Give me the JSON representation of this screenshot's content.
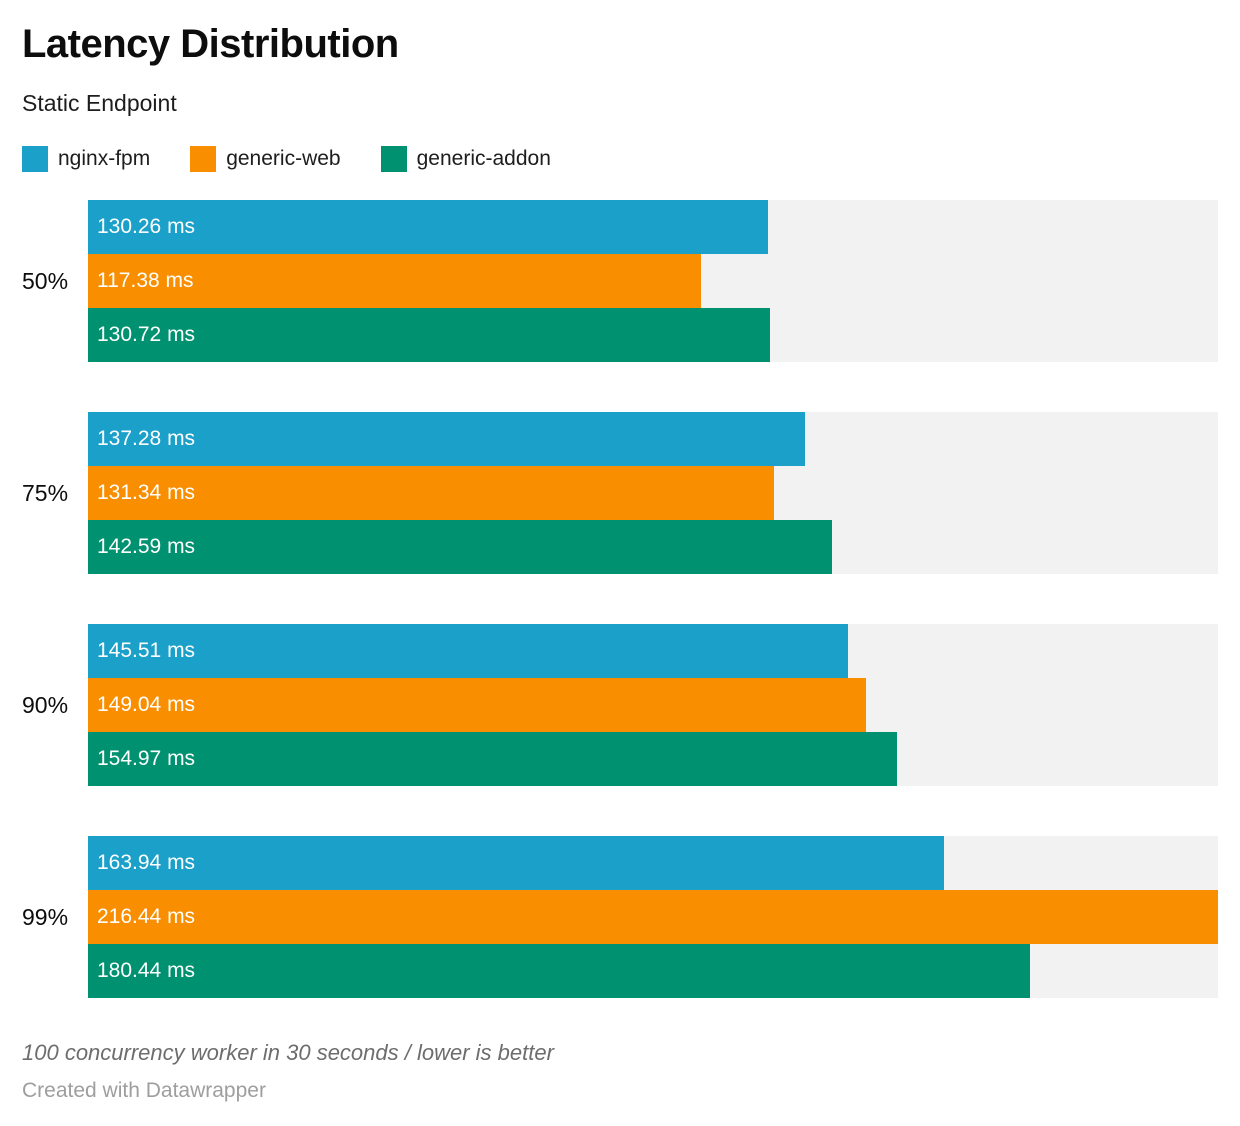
{
  "header": {
    "title": "Latency Distribution",
    "subtitle": "Static Endpoint"
  },
  "chart_data": {
    "type": "bar",
    "orientation": "horizontal",
    "grouped": true,
    "title": "Latency Distribution",
    "subtitle": "Static Endpoint",
    "categories": [
      "50%",
      "75%",
      "90%",
      "99%"
    ],
    "series": [
      {
        "name": "nginx-fpm",
        "color": "#1BA0C9",
        "values": [
          130.26,
          137.28,
          145.51,
          163.94
        ]
      },
      {
        "name": "generic-web",
        "color": "#F98F00",
        "values": [
          117.38,
          131.34,
          149.04,
          216.44
        ]
      },
      {
        "name": "generic-addon",
        "color": "#009270",
        "values": [
          130.72,
          142.59,
          154.97,
          180.44
        ]
      }
    ],
    "value_suffix": " ms",
    "xlim": [
      0,
      216.44
    ],
    "grid": false,
    "legend_position": "top",
    "track_color": "#F2F2F2"
  },
  "rows": [
    {
      "category": "50%",
      "labels": [
        "130.26 ms",
        "117.38 ms",
        "130.72 ms"
      ]
    },
    {
      "category": "75%",
      "labels": [
        "137.28 ms",
        "131.34 ms",
        "142.59 ms"
      ]
    },
    {
      "category": "90%",
      "labels": [
        "145.51 ms",
        "149.04 ms",
        "154.97 ms"
      ]
    },
    {
      "category": "99%",
      "labels": [
        "163.94 ms",
        "216.44 ms",
        "180.44 ms"
      ]
    }
  ],
  "footer": {
    "note": "100 concurrency worker in 30 seconds / lower is better",
    "credit": "Created with Datawrapper"
  }
}
